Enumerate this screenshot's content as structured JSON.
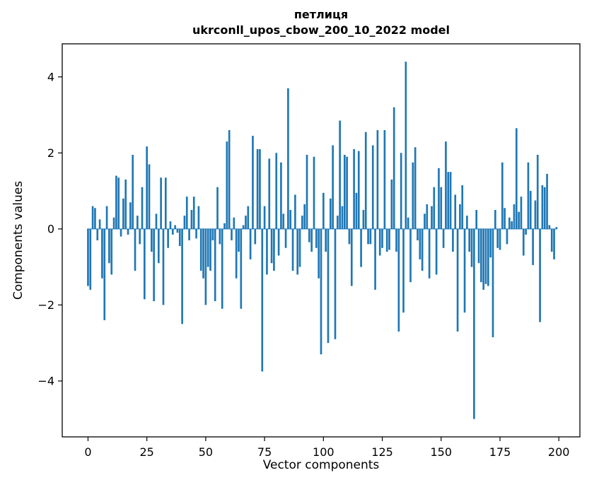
{
  "chart_data": {
    "type": "bar",
    "title": "петлиця",
    "subtitle": "ukrconll_upos_cbow_200_10_2022 model",
    "xlabel": "Vector components",
    "ylabel": "Components values",
    "bar_color": "#1f77b4",
    "axis_color": "#000000",
    "xlim": [
      -10.95,
      208.95
    ],
    "ylim": [
      -5.47,
      4.87
    ],
    "grid": false,
    "legend": "none",
    "xtick_values": [
      0,
      25,
      50,
      75,
      100,
      125,
      150,
      175,
      200
    ],
    "xtick_labels": [
      "0",
      "25",
      "50",
      "75",
      "100",
      "125",
      "150",
      "175",
      "200"
    ],
    "ytick_values": [
      -4,
      -2,
      0,
      2,
      4
    ],
    "ytick_labels": [
      "−4",
      "−2",
      "0",
      "2",
      "4"
    ],
    "x_start": 0,
    "values": [
      -1.5,
      -1.6,
      0.6,
      0.55,
      -0.3,
      0.25,
      -1.3,
      -2.4,
      0.6,
      -0.9,
      -1.2,
      0.3,
      1.4,
      1.35,
      -0.2,
      0.8,
      1.3,
      -0.15,
      0.7,
      1.95,
      -1.1,
      0.35,
      -0.4,
      1.1,
      -1.85,
      2.17,
      1.7,
      -0.6,
      -1.9,
      0.4,
      -0.9,
      1.35,
      -2.0,
      1.35,
      -0.5,
      0.2,
      -0.15,
      0.1,
      -0.1,
      -0.45,
      -2.5,
      0.35,
      0.85,
      -0.3,
      0.5,
      0.85,
      -0.25,
      0.6,
      -1.1,
      -1.3,
      -2.0,
      -1.0,
      -1.1,
      -0.3,
      -1.9,
      1.1,
      -0.4,
      -2.1,
      0.15,
      2.3,
      2.6,
      -0.3,
      0.3,
      -1.3,
      -0.6,
      -2.1,
      0.1,
      0.35,
      0.6,
      -0.8,
      2.45,
      -0.4,
      2.1,
      2.1,
      -3.75,
      0.6,
      -1.2,
      1.85,
      -0.9,
      -1.1,
      2.0,
      -0.7,
      1.75,
      0.4,
      -0.5,
      3.7,
      0.5,
      -1.1,
      0.9,
      -1.2,
      -1.0,
      0.35,
      0.65,
      1.95,
      -0.35,
      -0.6,
      1.9,
      -0.5,
      -1.3,
      -3.3,
      0.95,
      -0.6,
      -3.0,
      0.8,
      2.2,
      -2.9,
      0.35,
      2.85,
      0.6,
      1.95,
      1.9,
      -0.4,
      -1.5,
      2.1,
      0.95,
      2.05,
      -1.0,
      0.5,
      2.55,
      -0.4,
      -0.4,
      2.2,
      -1.6,
      2.6,
      -0.7,
      -0.5,
      2.6,
      -0.6,
      -0.55,
      1.3,
      3.2,
      -0.6,
      -2.7,
      2.0,
      -2.2,
      4.4,
      0.3,
      -1.4,
      1.75,
      2.15,
      -0.3,
      -0.8,
      -1.1,
      0.4,
      0.65,
      -1.3,
      0.6,
      1.1,
      -1.2,
      1.6,
      1.1,
      -0.5,
      2.3,
      1.5,
      1.5,
      -0.6,
      0.9,
      -2.7,
      0.65,
      1.15,
      -2.2,
      0.35,
      -0.6,
      -1.0,
      -5.0,
      0.5,
      -0.9,
      -1.4,
      -1.6,
      -1.45,
      -1.5,
      -0.75,
      -2.85,
      0.5,
      -0.5,
      -0.55,
      1.75,
      0.55,
      -0.4,
      0.3,
      0.2,
      0.65,
      2.65,
      0.45,
      0.85,
      -0.7,
      -0.15,
      1.75,
      1.0,
      -0.95,
      0.75,
      1.95,
      -2.45,
      1.15,
      1.1,
      1.45,
      0.1,
      -0.6,
      -0.8,
      0.05
    ]
  }
}
